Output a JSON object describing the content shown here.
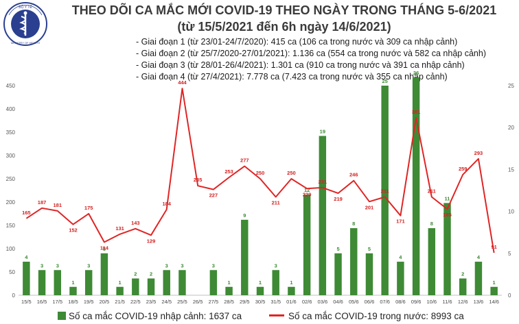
{
  "header": {
    "title": "THEO DÕI CA MẮC MỚI COVID-19 THEO NGÀY TRONG THÁNG 5-6/2021",
    "subtitle": "(từ 15/5/2021 đến 6h ngày 14/6/2021)",
    "phases": [
      "- Giai đoạn 1 (từ 23/01-24/7/2020): 415 ca (106 ca trong nước và 309 ca nhập cảnh)",
      "- Giai đoạn 2 (từ 25/7/2020-27/01/2021): 1.136 ca (554 ca trong nước và 582 ca nhập cảnh)",
      "- Giai đoạn 3 (từ 28/01-26/4/2021): 1.301 ca (910 ca trong nước và 391 ca nhập cảnh)",
      "- Giai đoạn 4 (từ 27/4/2021): 7.778 ca (7.423 ca trong nước và 355 ca nhập cảnh)"
    ]
  },
  "logo": {
    "text": "BỘ Y TẾ · MINISTRY OF HEALTH",
    "color": "#2a3f8f"
  },
  "legend": {
    "bars_label": "Số ca mắc COVID-19 nhập cảnh: 1637 ca",
    "line_label": "Số ca mắc COVID-19 trong nước: 8993 ca"
  },
  "chart_data": {
    "type": "bar+line",
    "categories": [
      "15/5",
      "16/5",
      "17/5",
      "18/5",
      "19/5",
      "20/5",
      "21/5",
      "22/5",
      "23/5",
      "24/5",
      "25/5",
      "26/5",
      "27/5",
      "28/5",
      "29/5",
      "30/5",
      "31/5",
      "01/6",
      "02/6",
      "03/6",
      "04/6",
      "05/6",
      "06/6",
      "07/6",
      "08/6",
      "09/6",
      "10/6",
      "11/6",
      "12/6",
      "13/6",
      "14/6"
    ],
    "left_axis": {
      "min": 0,
      "max": 450,
      "ticks": [
        0,
        50,
        100,
        150,
        200,
        250,
        300,
        350,
        400,
        450
      ]
    },
    "right_axis": {
      "min": 0,
      "max": 25,
      "ticks": [
        0,
        5,
        10,
        15,
        20,
        25
      ]
    },
    "bar_color": "#3e8a35",
    "line_color": "#e02424",
    "series": [
      {
        "name": "Số ca mắc COVID-19 nhập cảnh",
        "kind": "bar",
        "axis": "right",
        "values": [
          4,
          3,
          3,
          1,
          3,
          5,
          1,
          2,
          2,
          3,
          3,
          0,
          3,
          1,
          9,
          1,
          3,
          1,
          12,
          19,
          5,
          8,
          5,
          25,
          4,
          26,
          8,
          11,
          2,
          4,
          1
        ]
      },
      {
        "name": "Số ca mắc COVID-19 trong nước",
        "kind": "line",
        "axis": "left",
        "values": [
          165,
          187,
          181,
          152,
          175,
          114,
          131,
          143,
          129,
          184,
          444,
          235,
          227,
          253,
          277,
          250,
          211,
          250,
          229,
          231,
          219,
          246,
          201,
          211,
          171,
          381,
          211,
          185,
          259,
          293,
          91
        ]
      }
    ]
  }
}
